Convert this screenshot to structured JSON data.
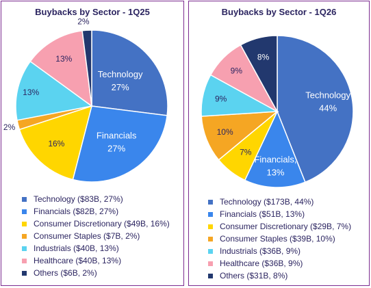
{
  "chart_data": [
    {
      "type": "pie",
      "title": "Buybacks by Sector - 1Q25",
      "slices": [
        {
          "label": "Technology",
          "value": 27,
          "display_pct": "27%",
          "display_label": "Technology",
          "color": "#4472c4"
        },
        {
          "label": "Financials",
          "value": 27,
          "display_pct": "27%",
          "display_label": "Financials",
          "color": "#3a86ec"
        },
        {
          "label": "Consumer Discretionary",
          "value": 16,
          "display_pct": "16%",
          "display_label": "",
          "color": "#ffd600"
        },
        {
          "label": "Consumer Staples",
          "value": 2,
          "display_pct": "2%",
          "display_label": "",
          "color": "#f5a623"
        },
        {
          "label": "Industrials",
          "value": 13,
          "display_pct": "13%",
          "display_label": "",
          "color": "#5bd3f0"
        },
        {
          "label": "Healthcare",
          "value": 13,
          "display_pct": "13%",
          "display_label": "",
          "color": "#f7a0b0"
        },
        {
          "label": "Others",
          "value": 2,
          "display_pct": "2%",
          "display_label": "",
          "color": "#22386e"
        }
      ],
      "legend": [
        "Technology ($83B, 27%)",
        "Financials ($82B, 27%)",
        "Consumer Discretionary ($49B, 16%)",
        "Consumer Staples ($7B, 2%)",
        "Industrials ($40B, 13%)",
        "Healthcare ($40B, 13%)",
        "Others ($6B, 2%)"
      ]
    },
    {
      "type": "pie",
      "title": "Buybacks by Sector - 1Q26",
      "slices": [
        {
          "label": "Technology",
          "value": 44,
          "display_pct": "44%",
          "display_label": "Technology",
          "color": "#4472c4"
        },
        {
          "label": "Financials",
          "value": 13,
          "display_pct": "13%",
          "display_label": "Financials,",
          "color": "#3a86ec"
        },
        {
          "label": "Consumer Discretionary",
          "value": 7,
          "display_pct": "7%",
          "display_label": "",
          "color": "#ffd600"
        },
        {
          "label": "Consumer Staples",
          "value": 10,
          "display_pct": "10%",
          "display_label": "",
          "color": "#f5a623"
        },
        {
          "label": "Industrials",
          "value": 9,
          "display_pct": "9%",
          "display_label": "",
          "color": "#5bd3f0"
        },
        {
          "label": "Healthcare",
          "value": 9,
          "display_pct": "9%",
          "display_label": "",
          "color": "#f7a0b0"
        },
        {
          "label": "Others",
          "value": 8,
          "display_pct": "8%",
          "display_label": "",
          "color": "#22386e"
        }
      ],
      "legend": [
        "Technology ($173B, 44%)",
        "Financials ($51B, 13%)",
        "Consumer Discretionary ($29B, 7%)",
        "Consumer Staples ($39B, 10%)",
        "Industrials ($36B, 9%)",
        "Healthcare ($36B, 9%)",
        "Others ($31B, 8%)"
      ]
    }
  ]
}
